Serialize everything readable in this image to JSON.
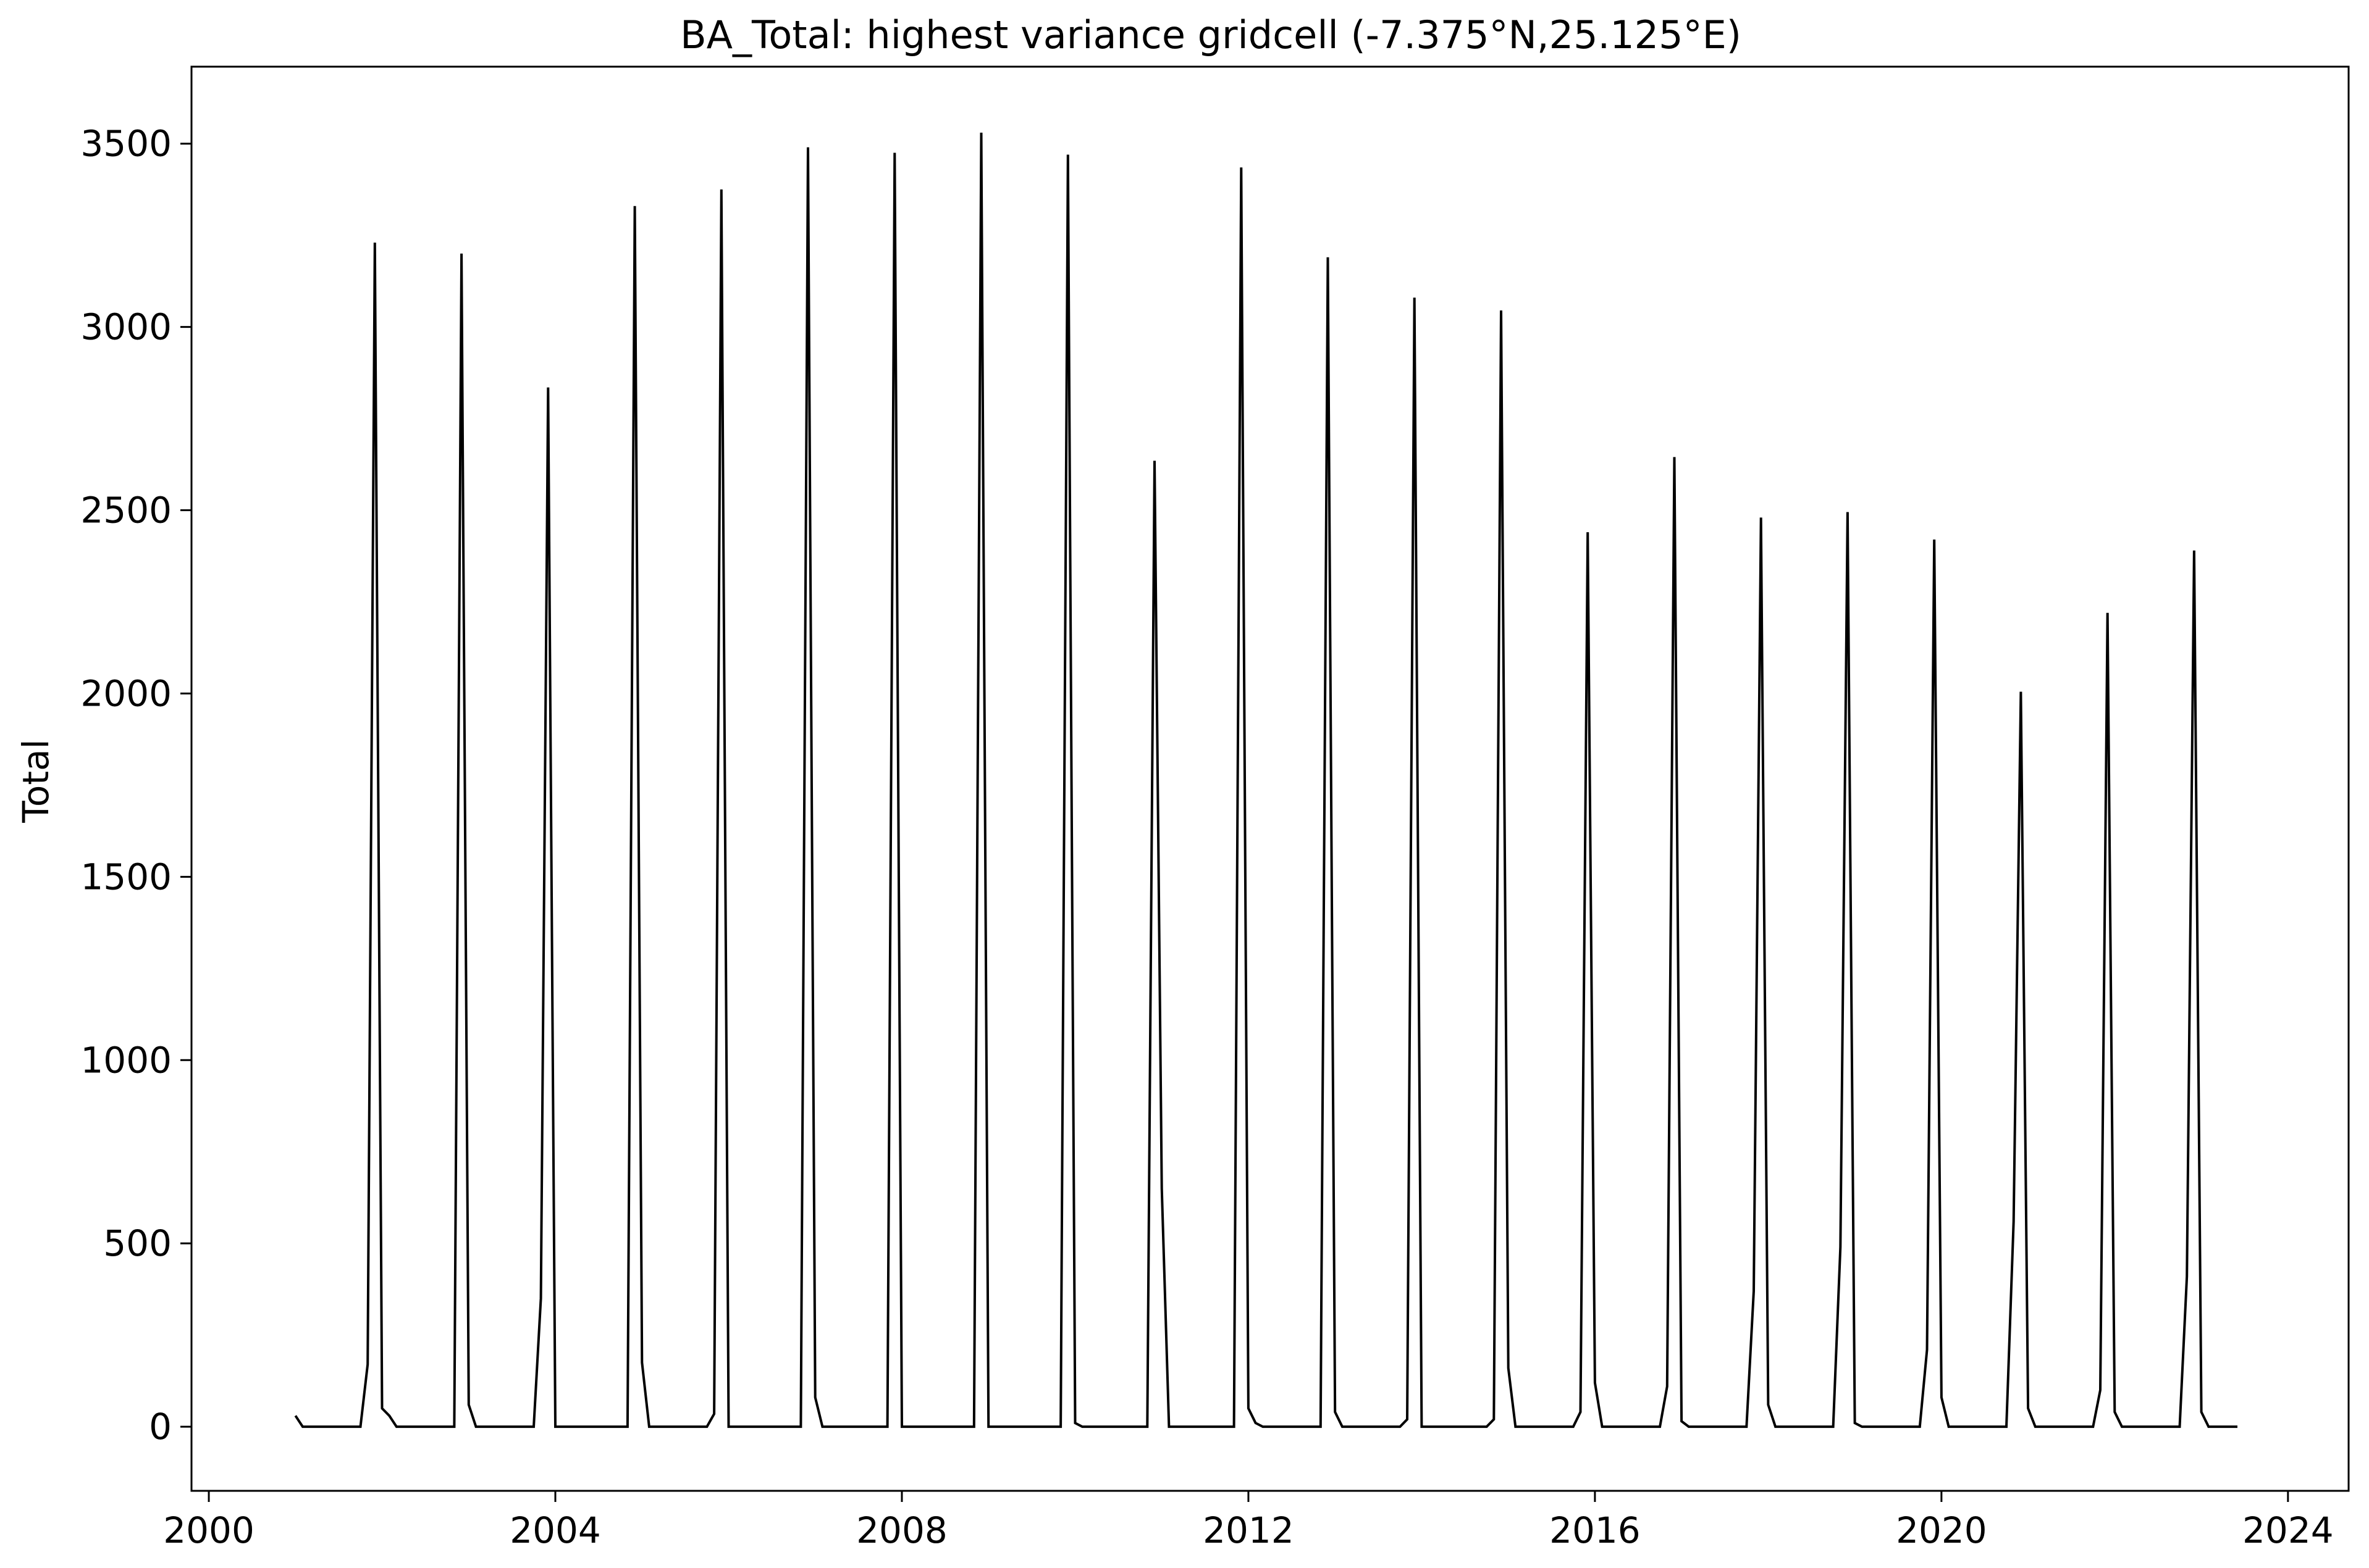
{
  "chart_data": {
    "type": "line",
    "title": "BA_Total: highest variance gridcell (-7.375°N,25.125°E)",
    "xlabel": "",
    "ylabel": "Total",
    "xlim": [
      1999.8,
      2024.7
    ],
    "ylim": [
      -175,
      3710
    ],
    "xticks": [
      2000,
      2004,
      2008,
      2012,
      2016,
      2020,
      2024
    ],
    "xtick_labels": [
      "2000",
      "2004",
      "2008",
      "2012",
      "2016",
      "2020",
      "2024"
    ],
    "yticks": [
      0,
      500,
      1000,
      1500,
      2000,
      2500,
      3000,
      3500
    ],
    "ytick_labels": [
      "0",
      "500",
      "1000",
      "1500",
      "2000",
      "2500",
      "3000",
      "3500"
    ],
    "grid": false,
    "line_color": "#000000",
    "series": [
      {
        "start": "2001-01",
        "frequency": "monthly",
        "values": [
          30,
          0,
          0,
          0,
          0,
          0,
          0,
          0,
          0,
          0,
          170,
          3230,
          50,
          30,
          0,
          0,
          0,
          0,
          0,
          0,
          0,
          0,
          0,
          3200,
          60,
          0,
          0,
          0,
          0,
          0,
          0,
          0,
          0,
          0,
          350,
          2835,
          0,
          0,
          0,
          0,
          0,
          0,
          0,
          0,
          0,
          0,
          0,
          3330,
          175,
          0,
          0,
          0,
          0,
          0,
          0,
          0,
          0,
          0,
          35,
          3375,
          0,
          0,
          0,
          0,
          0,
          0,
          0,
          0,
          0,
          0,
          0,
          3490,
          80,
          0,
          0,
          0,
          0,
          0,
          0,
          0,
          0,
          0,
          0,
          3475,
          0,
          0,
          0,
          0,
          0,
          0,
          0,
          0,
          0,
          0,
          0,
          3530,
          0,
          0,
          0,
          0,
          0,
          0,
          0,
          0,
          0,
          0,
          0,
          3470,
          10,
          0,
          0,
          0,
          0,
          0,
          0,
          0,
          0,
          0,
          0,
          2635,
          650,
          0,
          0,
          0,
          0,
          0,
          0,
          0,
          0,
          0,
          0,
          3435,
          50,
          10,
          0,
          0,
          0,
          0,
          0,
          0,
          0,
          0,
          0,
          3190,
          40,
          0,
          0,
          0,
          0,
          0,
          0,
          0,
          0,
          0,
          20,
          3080,
          0,
          0,
          0,
          0,
          0,
          0,
          0,
          0,
          0,
          0,
          20,
          3045,
          160,
          0,
          0,
          0,
          0,
          0,
          0,
          0,
          0,
          0,
          40,
          2440,
          120,
          0,
          0,
          0,
          0,
          0,
          0,
          0,
          0,
          0,
          110,
          2645,
          15,
          0,
          0,
          0,
          0,
          0,
          0,
          0,
          0,
          0,
          370,
          2480,
          60,
          0,
          0,
          0,
          0,
          0,
          0,
          0,
          0,
          0,
          490,
          2495,
          10,
          0,
          0,
          0,
          0,
          0,
          0,
          0,
          0,
          0,
          210,
          2420,
          80,
          0,
          0,
          0,
          0,
          0,
          0,
          0,
          0,
          0,
          560,
          2005,
          50,
          0,
          0,
          0,
          0,
          0,
          0,
          0,
          0,
          0,
          100,
          2220,
          40,
          0,
          0,
          0,
          0,
          0,
          0,
          0,
          0,
          0,
          410,
          2390,
          40,
          0,
          0,
          0,
          0,
          0
        ]
      }
    ]
  }
}
